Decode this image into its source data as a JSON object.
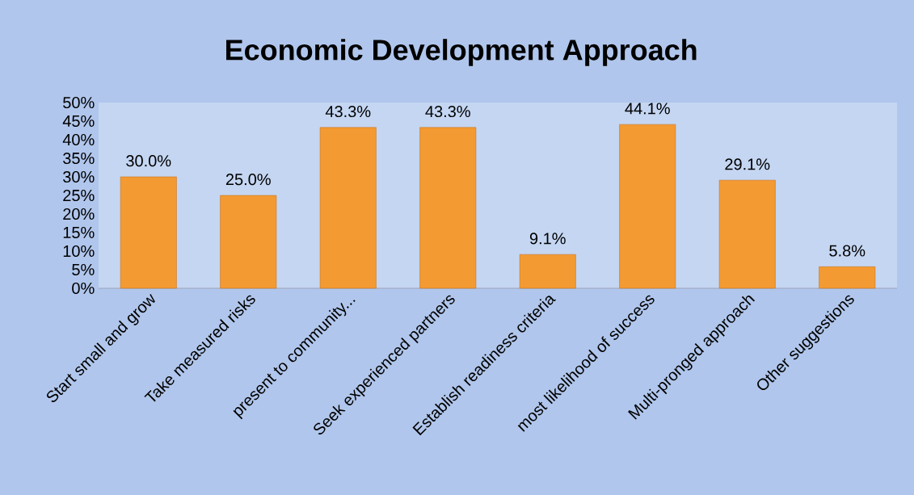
{
  "chart_data": {
    "type": "bar",
    "title": "Economic Development Approach",
    "categories": [
      "Start small and grow",
      "Take measured risks",
      "present to community...",
      "Seek experienced partners",
      "Establish readiness criteria",
      "most likelihood of success",
      "Multi-pronged approach",
      "Other suggestions"
    ],
    "values": [
      30.0,
      25.0,
      43.3,
      43.3,
      9.1,
      44.1,
      29.1,
      5.8
    ],
    "value_labels": [
      "30.0%",
      "25.0%",
      "43.3%",
      "43.3%",
      "9.1%",
      "44.1%",
      "29.1%",
      "5.8%"
    ],
    "color": "#f39a32",
    "ylim": [
      0,
      50
    ],
    "yticks": [
      {
        "value": 0,
        "label": "0%"
      },
      {
        "value": 5,
        "label": "5%"
      },
      {
        "value": 10,
        "label": "10%"
      },
      {
        "value": 15,
        "label": "15%"
      },
      {
        "value": 20,
        "label": "20%"
      },
      {
        "value": 25,
        "label": "25%"
      },
      {
        "value": 30,
        "label": "30%"
      },
      {
        "value": 35,
        "label": "35%"
      },
      {
        "value": 40,
        "label": "40%"
      },
      {
        "value": 45,
        "label": "45%"
      },
      {
        "value": 50,
        "label": "50%"
      }
    ],
    "grid": false
  }
}
